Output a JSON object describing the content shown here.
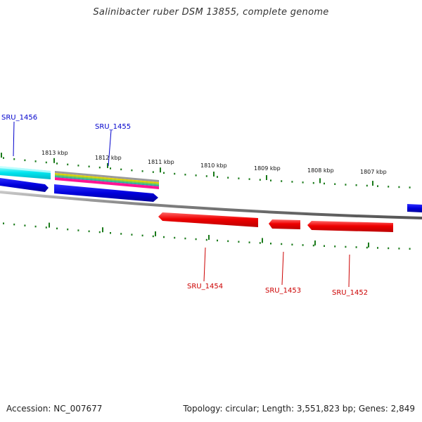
{
  "title": "Salinibacter ruber DSM 13855, complete genome",
  "footer": {
    "accession": "Accession: NC_007677",
    "summary": "Topology: circular; Length: 3,551,823 bp; Genes: 2,849"
  },
  "ruler": {
    "ticks": [
      "1813 kbp",
      "1812 kbp",
      "1811 kbp",
      "1810 kbp",
      "1809 kbp",
      "1808 kbp",
      "1807 kbp"
    ],
    "tick_color": "#1a7a1a"
  },
  "genes": {
    "forward": [
      {
        "label": "SRU_1456",
        "color": "#0000cc"
      },
      {
        "label": "SRU_1455",
        "color": "#0000cc"
      }
    ],
    "reverse": [
      {
        "label": "SRU_1454",
        "color": "#cc0000"
      },
      {
        "label": "SRU_1453",
        "color": "#cc0000"
      },
      {
        "label": "SRU_1452",
        "color": "#cc0000"
      }
    ]
  },
  "colors": {
    "forward_gene": "#0000dd",
    "reverse_gene": "#ee0000",
    "backbone": "#808080",
    "cyan_feature": "#00e5ee",
    "stripes": [
      "#9a9a9a",
      "#e0d000",
      "#7ac943",
      "#28b0a0",
      "#ff1493"
    ]
  }
}
